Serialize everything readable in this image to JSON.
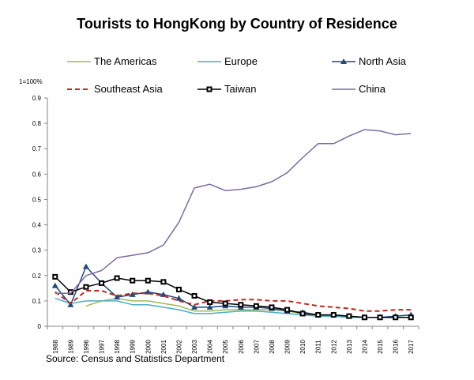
{
  "chart_data": {
    "type": "line",
    "title": "Tourists to HongKong by Country of Residence",
    "unit_label": "1=100%",
    "source": "Source: Census and Statistics Department",
    "ylim": [
      0,
      0.9
    ],
    "yticks": [
      "0",
      "0.1",
      "0.2",
      "0.3",
      "0.4",
      "0.5",
      "0.6",
      "0.7",
      "0.8",
      "0.9"
    ],
    "categories": [
      "1988",
      "1989",
      "1996",
      "1997",
      "1998",
      "1999",
      "2000",
      "2001",
      "2002",
      "2003",
      "2004",
      "2005",
      "2006",
      "2007",
      "2008",
      "2009",
      "2010",
      "2011",
      "2012",
      "2013",
      "2014",
      "2015",
      "2016",
      "2017"
    ],
    "series": [
      {
        "name": "The Americas",
        "color": "#9bbb59",
        "dash": "",
        "marker": "none",
        "values": [
          null,
          null,
          0.08,
          0.1,
          0.11,
          0.1,
          0.1,
          0.09,
          0.08,
          0.06,
          0.06,
          0.065,
          0.065,
          0.065,
          0.065,
          0.06,
          0.05,
          0.045,
          0.04,
          0.035,
          0.035,
          0.035,
          0.035,
          0.035
        ]
      },
      {
        "name": "Europe",
        "color": "#4bacc6",
        "dash": "",
        "marker": "none",
        "values": [
          0.11,
          0.09,
          0.1,
          0.1,
          0.1,
          0.085,
          0.085,
          0.075,
          0.065,
          0.05,
          0.05,
          0.055,
          0.06,
          0.06,
          0.055,
          0.05,
          0.045,
          0.04,
          0.04,
          0.035,
          0.035,
          0.035,
          0.035,
          0.035
        ]
      },
      {
        "name": "North Asia",
        "color": "#1f497d",
        "dash": "",
        "marker": "triangle",
        "values": [
          0.16,
          0.085,
          0.235,
          0.17,
          0.115,
          0.125,
          0.135,
          0.125,
          0.11,
          0.075,
          0.075,
          0.08,
          0.075,
          0.075,
          0.07,
          0.06,
          0.055,
          0.045,
          0.045,
          0.04,
          0.035,
          0.035,
          0.04,
          0.045
        ]
      },
      {
        "name": "Southeast Asia",
        "color": "#c0281e",
        "dash": "6,4",
        "marker": "none",
        "values": [
          0.135,
          0.09,
          0.14,
          0.14,
          0.12,
          0.13,
          0.13,
          0.12,
          0.1,
          0.085,
          0.1,
          0.1,
          0.105,
          0.105,
          0.1,
          0.1,
          0.09,
          0.08,
          0.075,
          0.07,
          0.06,
          0.06,
          0.065,
          0.065
        ]
      },
      {
        "name": "Taiwan",
        "color": "#000000",
        "dash": "",
        "marker": "square",
        "values": [
          0.195,
          0.135,
          0.155,
          0.17,
          0.19,
          0.18,
          0.18,
          0.175,
          0.145,
          0.12,
          0.095,
          0.09,
          0.085,
          0.08,
          0.075,
          0.065,
          0.05,
          0.045,
          0.045,
          0.04,
          0.035,
          0.035,
          0.035,
          0.035
        ]
      },
      {
        "name": "China",
        "color": "#7e6aa2",
        "dash": "",
        "marker": "none",
        "values": [
          0.13,
          0.13,
          0.2,
          0.22,
          0.27,
          0.28,
          0.29,
          0.32,
          0.41,
          0.545,
          0.56,
          0.535,
          0.54,
          0.55,
          0.57,
          0.605,
          0.665,
          0.72,
          0.72,
          0.75,
          0.775,
          0.77,
          0.755,
          0.76
        ]
      }
    ]
  }
}
